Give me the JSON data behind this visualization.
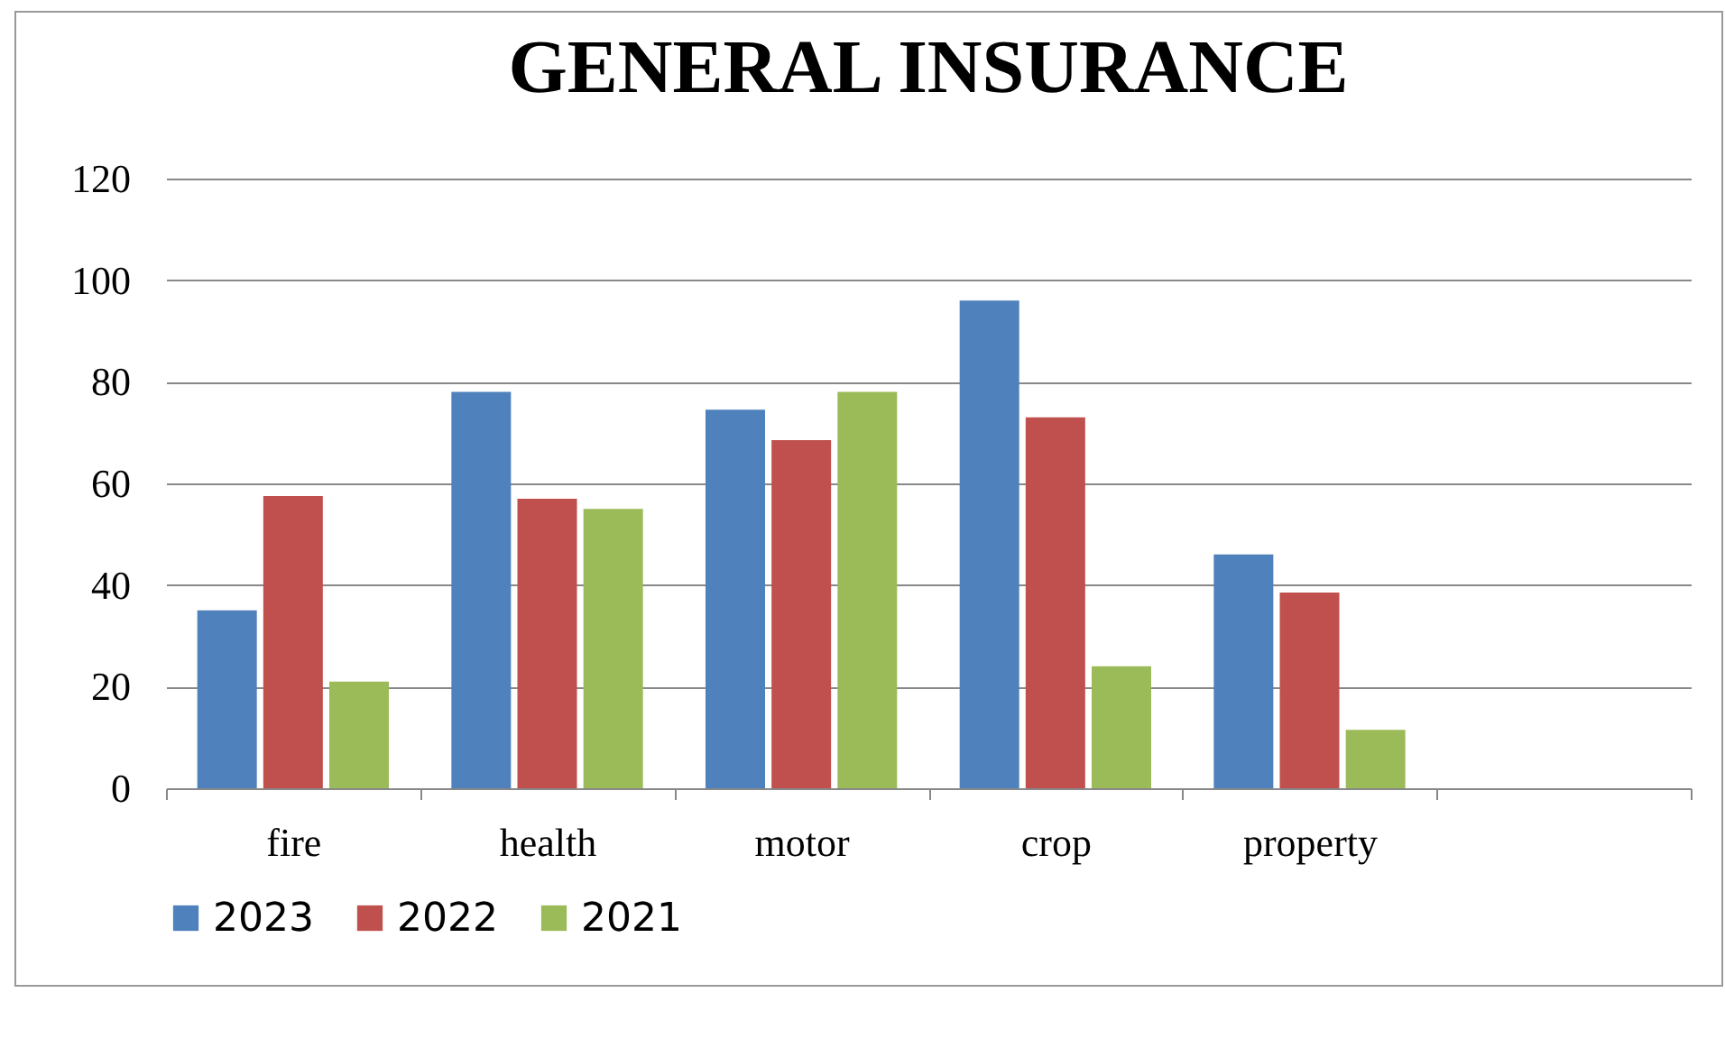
{
  "chart_data": {
    "type": "bar",
    "title": "GENERAL INSURANCE",
    "categories": [
      "fire",
      "health",
      "motor",
      "crop",
      "property",
      null
    ],
    "series": [
      {
        "name": "2023",
        "color": "#4f81bd",
        "values": [
          35,
          78,
          74.5,
          96,
          46,
          null
        ]
      },
      {
        "name": "2022",
        "color": "#c0504d",
        "values": [
          57.5,
          57,
          68.5,
          73,
          38.5,
          null
        ]
      },
      {
        "name": "2021",
        "color": "#9bbb59",
        "values": [
          21,
          55,
          78,
          24,
          11.5,
          null
        ]
      }
    ],
    "ylim": [
      0,
      120
    ],
    "yticks": [
      0,
      20,
      40,
      60,
      80,
      100,
      120
    ],
    "grid": "y",
    "legend": "bottom"
  }
}
